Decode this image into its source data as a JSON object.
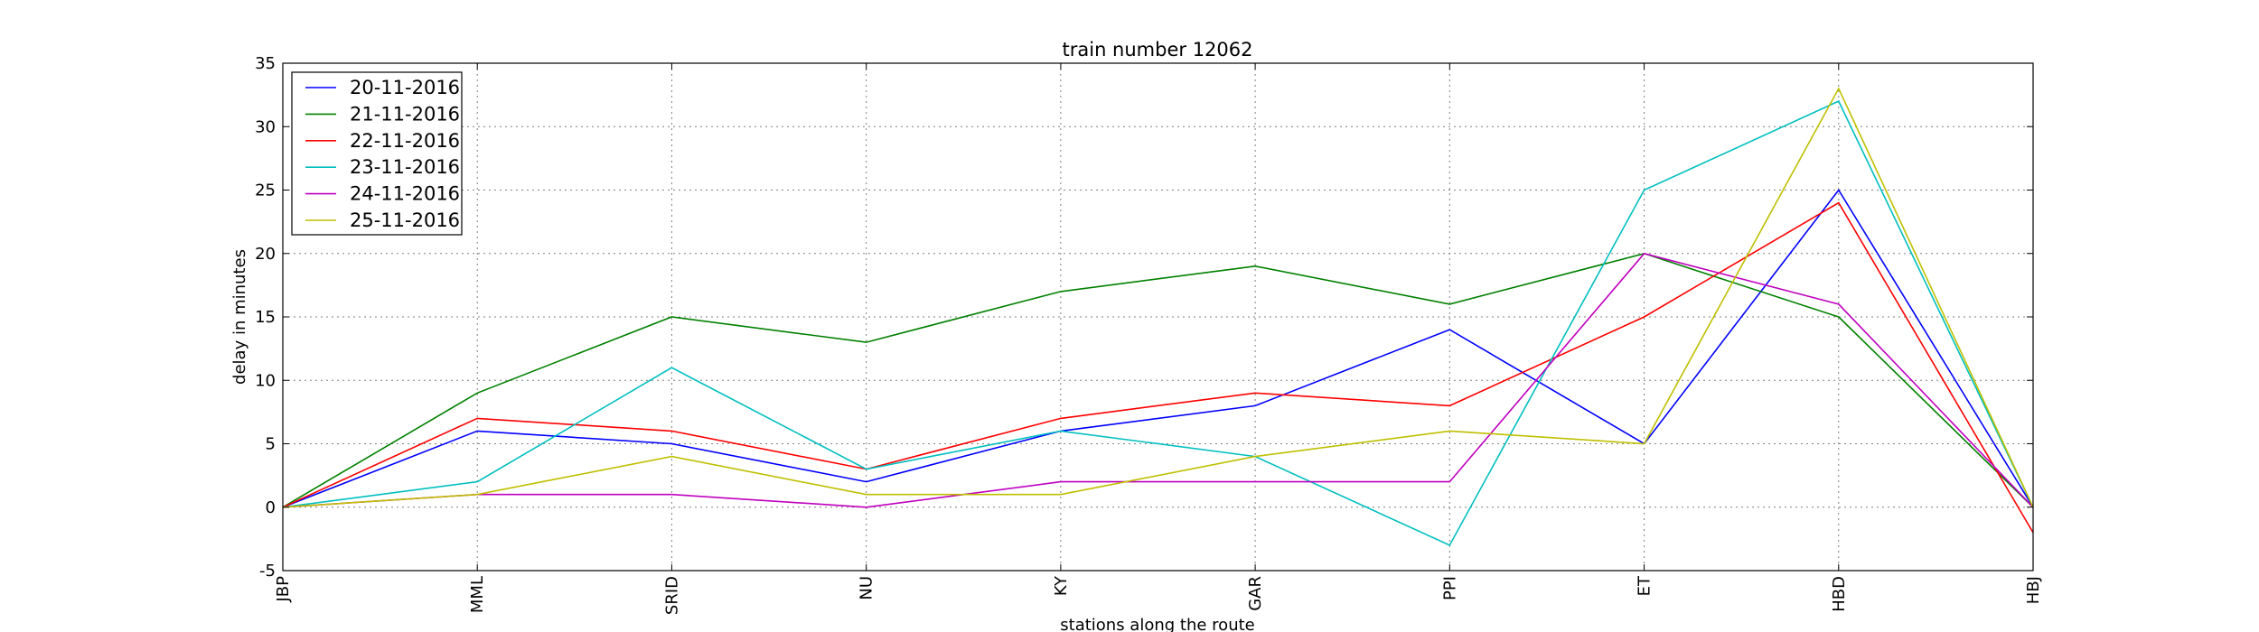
{
  "chart_data": {
    "type": "line",
    "title": "train number 12062",
    "xlabel": "stations along the route",
    "ylabel": "delay in minutes",
    "categories": [
      "JBP",
      "MML",
      "SRID",
      "NU",
      "KY",
      "GAR",
      "PPI",
      "ET",
      "HBD",
      "HBJ"
    ],
    "ylim": [
      -5,
      35
    ],
    "yticks": [
      -5,
      0,
      5,
      10,
      15,
      20,
      25,
      30,
      35
    ],
    "grid": true,
    "legend_position": "top-left",
    "series": [
      {
        "name": "20-11-2016",
        "color": "#0000ff",
        "values": [
          0,
          6,
          5,
          2,
          6,
          8,
          14,
          5,
          25,
          0
        ]
      },
      {
        "name": "21-11-2016",
        "color": "#008000",
        "values": [
          0,
          9,
          15,
          13,
          17,
          19,
          16,
          20,
          15,
          0
        ]
      },
      {
        "name": "22-11-2016",
        "color": "#ff0000",
        "values": [
          0,
          7,
          6,
          3,
          7,
          9,
          8,
          15,
          24,
          -2
        ]
      },
      {
        "name": "23-11-2016",
        "color": "#00bfbf",
        "values": [
          0,
          2,
          11,
          3,
          6,
          4,
          -3,
          25,
          32,
          0
        ]
      },
      {
        "name": "24-11-2016",
        "color": "#bf00bf",
        "values": [
          0,
          1,
          1,
          0,
          2,
          2,
          2,
          20,
          16,
          0
        ]
      },
      {
        "name": "25-11-2016",
        "color": "#bfbf00",
        "values": [
          0,
          1,
          4,
          1,
          1,
          4,
          6,
          5,
          33,
          0
        ]
      }
    ]
  }
}
